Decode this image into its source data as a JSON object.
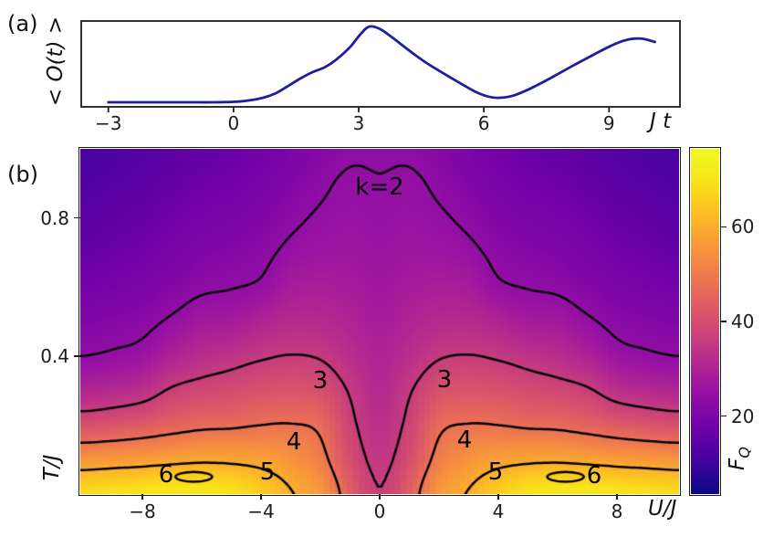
{
  "figure": {
    "background": "#ffffff",
    "text_color": "#1c1c1c",
    "panel_a": {
      "tag": "(a)",
      "ylabel": "< O(t) >",
      "xlabel": "J t",
      "x_tick_labels": [
        "−3",
        "0",
        "3",
        "6",
        "9"
      ],
      "line_color": "#1f1f9e"
    },
    "panel_b": {
      "tag": "(b)",
      "xlabel": "U/J",
      "ylabel": "T/J",
      "x_tick_labels": [
        "−8",
        "−4",
        "0",
        "4",
        "8"
      ],
      "y_tick_labels": [
        "0.4",
        "0.8"
      ],
      "colorbar": {
        "label_main": "F",
        "label_sub": "Q",
        "tick_labels": [
          "20",
          "40",
          "60"
        ]
      }
    }
  },
  "chart_data": [
    {
      "type": "line",
      "panel": "(a)",
      "title": "",
      "xlabel": "J t",
      "ylabel": "< O(t) >",
      "x_ticks": [
        -3,
        0,
        3,
        6,
        9
      ],
      "x_range": [
        -3.65,
        10.7
      ],
      "y_range": [
        0,
        1
      ],
      "y_axis_note": "no y tick labels shown; values in arbitrary units",
      "grid": false,
      "series": [
        {
          "name": "<O(t)>",
          "color": "#1f1f9e",
          "x": [
            -3.0,
            -2.5,
            -2.0,
            -1.5,
            -1.0,
            -0.5,
            0.0,
            0.3,
            0.7,
            1.0,
            1.3,
            1.6,
            1.9,
            2.2,
            2.5,
            2.8,
            3.05,
            3.25,
            3.5,
            3.8,
            4.2,
            4.6,
            5.0,
            5.4,
            5.8,
            6.1,
            6.35,
            6.7,
            7.1,
            7.6,
            8.1,
            8.6,
            9.0,
            9.35,
            9.6,
            9.85,
            10.1
          ],
          "y": [
            0.053,
            0.053,
            0.053,
            0.053,
            0.053,
            0.053,
            0.058,
            0.07,
            0.105,
            0.155,
            0.24,
            0.33,
            0.405,
            0.465,
            0.565,
            0.7,
            0.85,
            0.935,
            0.91,
            0.81,
            0.66,
            0.52,
            0.4,
            0.285,
            0.175,
            0.12,
            0.105,
            0.13,
            0.21,
            0.335,
            0.47,
            0.6,
            0.7,
            0.77,
            0.795,
            0.79,
            0.755
          ]
        }
      ]
    },
    {
      "type": "heatmap",
      "panel": "(b)",
      "xlabel": "U/J",
      "ylabel": "T/J",
      "x_range": [
        -10.1,
        10.1
      ],
      "y_range": [
        0.0,
        1.0
      ],
      "x_ticks": [
        -8,
        -4,
        0,
        4,
        8
      ],
      "y_ticks": [
        0.4,
        0.8
      ],
      "colorbar": {
        "label": "F_Q",
        "ticks": [
          20,
          40,
          60
        ],
        "vmin": 3.5,
        "vmax": 76.5,
        "colormap": "plasma"
      },
      "grid": {
        "U": [
          -10,
          -9,
          -8,
          -7,
          -6,
          -5,
          -4,
          -3,
          -2,
          -1,
          0,
          1,
          2,
          3,
          4,
          5,
          6,
          7,
          8,
          9,
          10
        ],
        "T": [
          0.0,
          0.1,
          0.2,
          0.3,
          0.4,
          0.5,
          0.6,
          0.7,
          0.8,
          0.9,
          1.0
        ],
        "F_estimated": [
          [
            68.5,
            69.5,
            70.5,
            71.5,
            71.8,
            70.0,
            66.0,
            60.5,
            56.0,
            44.0,
            36.2,
            44.0,
            56.0,
            60.5,
            66.0,
            70.0,
            71.8,
            71.5,
            70.5,
            69.5,
            68.5
          ],
          [
            55.5,
            56.2,
            57.0,
            58.0,
            58.8,
            58.5,
            57.5,
            55.0,
            50.5,
            40.0,
            34.6,
            40.0,
            50.5,
            55.0,
            57.5,
            58.5,
            58.8,
            58.0,
            57.0,
            56.2,
            55.5
          ],
          [
            40.5,
            41.5,
            43.0,
            45.0,
            46.5,
            47.0,
            48.0,
            48.3,
            46.5,
            37.5,
            33.0,
            37.5,
            46.5,
            48.3,
            48.0,
            47.0,
            46.5,
            45.0,
            43.0,
            41.5,
            40.5
          ],
          [
            30.5,
            31.5,
            33.0,
            36.8,
            38.5,
            39.5,
            41.0,
            41.5,
            40.5,
            35.5,
            31.4,
            35.5,
            40.5,
            41.5,
            41.0,
            39.5,
            38.5,
            36.8,
            33.0,
            31.5,
            30.5
          ],
          [
            24.0,
            24.8,
            26.0,
            29.8,
            32.3,
            33.8,
            35.3,
            36.2,
            35.5,
            32.5,
            29.8,
            32.5,
            35.5,
            36.2,
            35.3,
            33.8,
            32.3,
            29.8,
            26.0,
            24.8,
            24.0
          ],
          [
            21.0,
            21.8,
            22.6,
            24.8,
            27.2,
            27.8,
            30.0,
            31.7,
            31.5,
            30.0,
            28.3,
            30.0,
            31.5,
            31.7,
            30.0,
            27.8,
            27.2,
            24.8,
            22.6,
            21.8,
            21.0
          ],
          [
            18.3,
            19.2,
            20.1,
            21.6,
            23.2,
            23.8,
            24.8,
            28.0,
            28.6,
            28.1,
            26.9,
            28.1,
            28.6,
            28.0,
            24.8,
            23.8,
            23.2,
            21.6,
            20.1,
            19.2,
            18.3
          ],
          [
            16.1,
            17.0,
            18.0,
            19.5,
            21.0,
            21.8,
            22.8,
            25.1,
            26.3,
            26.5,
            25.8,
            26.5,
            26.3,
            25.1,
            22.8,
            21.8,
            21.0,
            19.5,
            18.0,
            17.0,
            16.1
          ],
          [
            14.3,
            15.2,
            16.2,
            17.6,
            19.0,
            19.8,
            21.0,
            23.0,
            24.6,
            25.4,
            24.9,
            25.4,
            24.6,
            23.0,
            21.0,
            19.8,
            19.0,
            17.6,
            16.2,
            15.2,
            14.3
          ],
          [
            12.8,
            13.7,
            14.7,
            16.0,
            17.2,
            18.0,
            19.4,
            21.3,
            23.2,
            24.7,
            24.25,
            24.7,
            23.2,
            21.3,
            19.4,
            18.0,
            17.2,
            16.0,
            14.7,
            13.7,
            12.8
          ],
          [
            11.0,
            12.0,
            13.3,
            14.5,
            15.6,
            16.5,
            18.0,
            19.8,
            21.8,
            23.3,
            23.4,
            23.3,
            21.8,
            19.8,
            18.0,
            16.5,
            15.6,
            14.5,
            13.3,
            12.0,
            11.0
          ]
        ]
      },
      "contours": {
        "level_k_values": [
          2,
          3,
          4,
          5,
          6
        ],
        "render_levels_F": [
          24,
          36,
          48,
          60
        ],
        "labels": [
          {
            "text": "k=2",
            "u": 0.0,
            "t": 0.888
          },
          {
            "text": "3",
            "u": -2.0,
            "t": 0.328
          },
          {
            "text": "3",
            "u": 2.2,
            "t": 0.332
          },
          {
            "text": "4",
            "u": -2.9,
            "t": 0.152
          },
          {
            "text": "4",
            "u": 2.85,
            "t": 0.155
          },
          {
            "text": "5",
            "u": -3.8,
            "t": 0.063
          },
          {
            "text": "5",
            "u": 3.9,
            "t": 0.063
          },
          {
            "text": "6",
            "u": -7.2,
            "t": 0.055
          },
          {
            "text": "6",
            "u": 7.25,
            "t": 0.052
          }
        ],
        "ellipses_k6": [
          {
            "u": -6.27,
            "t": 0.05,
            "ru": 0.62,
            "rt": 0.014
          },
          {
            "u": 6.27,
            "t": 0.05,
            "ru": 0.62,
            "rt": 0.014
          }
        ]
      }
    }
  ]
}
